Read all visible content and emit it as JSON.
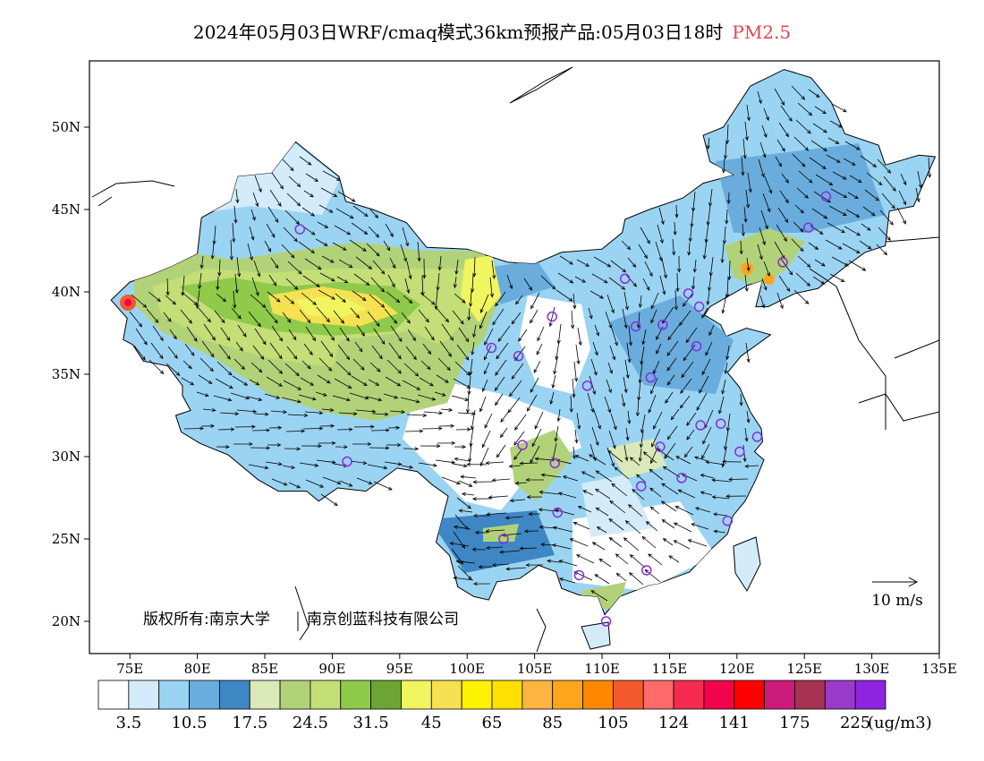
{
  "title": "2024年05月03日WRF/cmaq模式36km预报产品:05月03日18时",
  "variable": "PM2.5",
  "lat_labels": [
    "50N",
    "45N",
    "40N",
    "35N",
    "30N",
    "25N",
    "20N"
  ],
  "lon_labels": [
    "75E",
    "80E",
    "85E",
    "90E",
    "95E",
    "100E",
    "105E",
    "110E",
    "115E",
    "120E",
    "125E",
    "130E",
    "135E"
  ],
  "wind_scale_label": "10 m/s",
  "copyright": [
    "版权所有:南京大学",
    "南京创蓝科技有限公司"
  ],
  "colorbar": {
    "colors": [
      "#ffffff",
      "#d4ecfa",
      "#9bd4f3",
      "#6aaddd",
      "#3f87c4",
      "#dbe8b8",
      "#b2d27a",
      "#c4de78",
      "#8fca4a",
      "#6ca533",
      "#f0f560",
      "#f5e152",
      "#fdf200",
      "#ffe000",
      "#fbb540",
      "#fea51e",
      "#ff8800",
      "#f25a2e",
      "#ff6a6a",
      "#f52c50",
      "#f0044c",
      "#ff0000",
      "#cc1a7a",
      "#a73352",
      "#9a3acb",
      "#8e24e0"
    ],
    "labels": [
      "3.5",
      "10.5",
      "17.5",
      "24.5",
      "31.5",
      "45",
      "65",
      "85",
      "105",
      "124",
      "141",
      "175",
      "225"
    ],
    "unit": "(ug/m3)"
  },
  "stations": [
    {
      "lon": 87.6,
      "lat": 43.8
    },
    {
      "lon": 91.1,
      "lat": 29.7
    },
    {
      "lon": 101.8,
      "lat": 36.6
    },
    {
      "lon": 103.8,
      "lat": 36.1
    },
    {
      "lon": 106.3,
      "lat": 38.5
    },
    {
      "lon": 111.7,
      "lat": 40.8
    },
    {
      "lon": 112.5,
      "lat": 37.9
    },
    {
      "lon": 114.5,
      "lat": 38.0
    },
    {
      "lon": 116.4,
      "lat": 39.9
    },
    {
      "lon": 117.2,
      "lat": 39.1
    },
    {
      "lon": 117.0,
      "lat": 36.7
    },
    {
      "lon": 113.6,
      "lat": 34.8
    },
    {
      "lon": 108.9,
      "lat": 34.3
    },
    {
      "lon": 104.1,
      "lat": 30.7
    },
    {
      "lon": 106.5,
      "lat": 29.6
    },
    {
      "lon": 106.7,
      "lat": 26.6
    },
    {
      "lon": 102.7,
      "lat": 25.0
    },
    {
      "lon": 108.3,
      "lat": 22.8
    },
    {
      "lon": 113.3,
      "lat": 23.1
    },
    {
      "lon": 110.3,
      "lat": 20.0
    },
    {
      "lon": 112.9,
      "lat": 28.2
    },
    {
      "lon": 114.3,
      "lat": 30.6
    },
    {
      "lon": 115.9,
      "lat": 28.7
    },
    {
      "lon": 117.3,
      "lat": 31.9
    },
    {
      "lon": 118.8,
      "lat": 32.0
    },
    {
      "lon": 120.2,
      "lat": 30.3
    },
    {
      "lon": 121.5,
      "lat": 31.2
    },
    {
      "lon": 119.3,
      "lat": 26.1
    },
    {
      "lon": 123.4,
      "lat": 41.8
    },
    {
      "lon": 125.3,
      "lat": 43.9
    },
    {
      "lon": 126.6,
      "lat": 45.8
    }
  ]
}
